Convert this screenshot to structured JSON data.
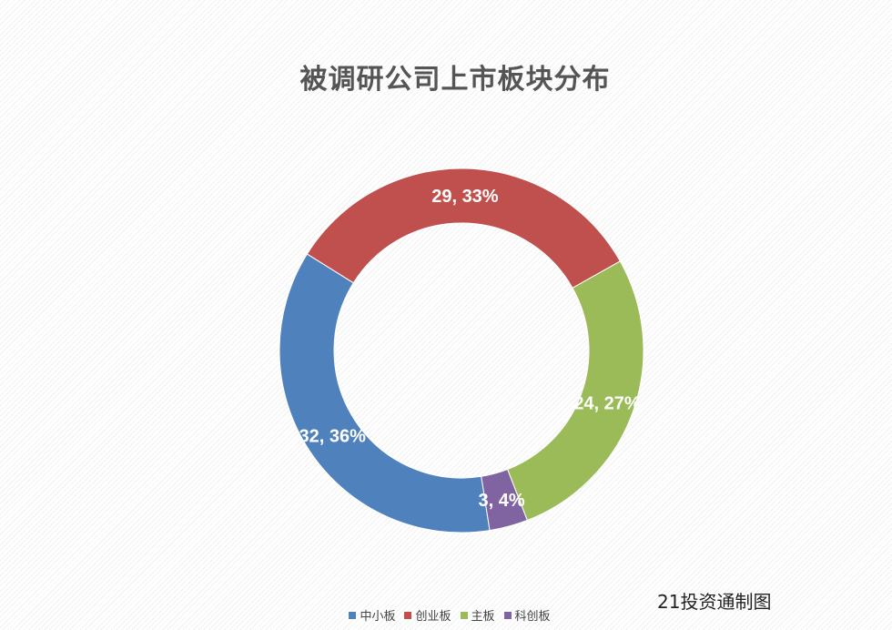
{
  "chart_data": {
    "type": "pie",
    "donut": true,
    "title": "被调研公司上市板块分布",
    "slices": [
      {
        "name": "创业板",
        "value": 29,
        "percent": "33%",
        "color": "#C0504D"
      },
      {
        "name": "主板",
        "value": 24,
        "percent": "27%",
        "color": "#9BBB59"
      },
      {
        "name": "科创板",
        "value": 3,
        "percent": "4%",
        "color": "#8064A2"
      },
      {
        "name": "中小板",
        "value": 32,
        "percent": "36%",
        "color": "#4F81BD"
      }
    ],
    "legend_order": [
      "中小板",
      "创业板",
      "主板",
      "科创板"
    ],
    "legend_position": "bottom"
  },
  "source_note": "21投资通制图"
}
